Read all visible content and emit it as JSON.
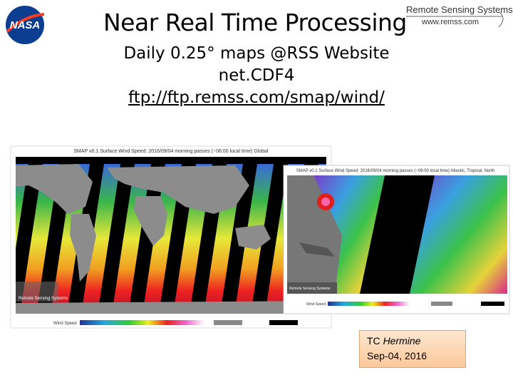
{
  "header": {
    "title": "Near Real Time Processing",
    "lines": [
      "Daily 0.25° maps @RSS Website",
      "net.CDF4",
      "ftp://ftp.remss.com/smap/wind/"
    ]
  },
  "logos": {
    "nasa": "NASA",
    "rss_name": "Remote Sensing Systems",
    "rss_url": "www.remss.com"
  },
  "maps": [
    {
      "title": "SMAP v0.1 Surface Wind Speed: 2016/09/04 morning passes (~06:00 local time) Global",
      "credit": "Remote Sensing Systems",
      "colorbar_label": "Wind Speed"
    },
    {
      "title": "SMAP v0.1 Surface Wind Speed: 2016/09/04 morning passes (~06:00 local time) Atlantic, Tropical, North",
      "credit": "Remote Sensing Systems",
      "colorbar_label": "Wind Speed"
    }
  ],
  "callout": {
    "storm_type": "TC",
    "storm_name": "Hermine",
    "date": "Sep-04, 2016"
  }
}
